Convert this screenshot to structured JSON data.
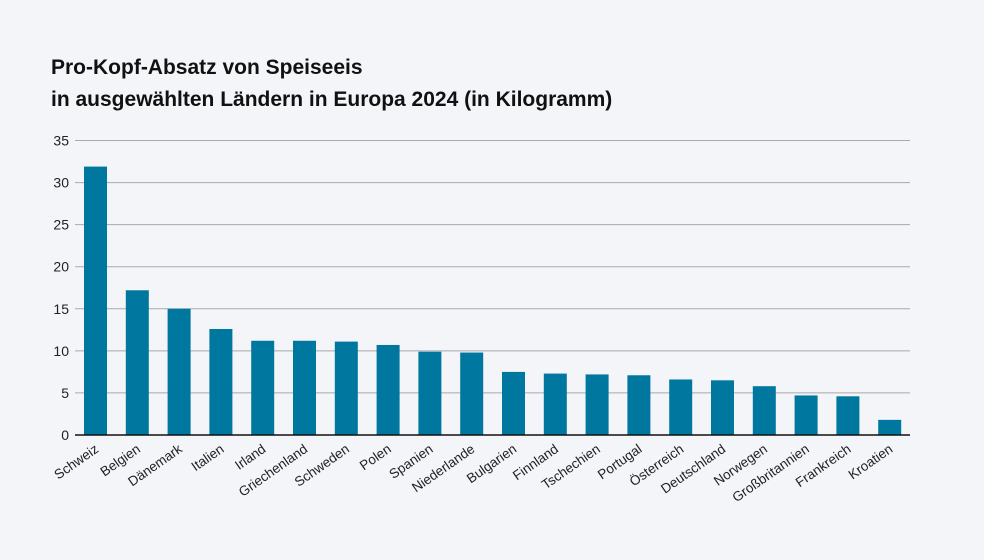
{
  "chart_data": {
    "type": "bar",
    "title": "Pro-Kopf-Absatz von Speiseeis",
    "subtitle": "in ausgewählten Ländern in Europa 2024 (in Kilogramm)",
    "xlabel": "",
    "ylabel": "",
    "ylim": [
      0,
      35
    ],
    "yticks": [
      "0",
      "5",
      "10",
      "15",
      "20",
      "25",
      "30",
      "35"
    ],
    "grid": true,
    "bar_color": "#00779e",
    "categories": [
      "Schweiz",
      "Belgien",
      "Dänemark",
      "Italien",
      "Irland",
      "Griechenland",
      "Schweden",
      "Polen",
      "Spanien",
      "Niederlande",
      "Bulgarien",
      "Finnland",
      "Tschechien",
      "Portugal",
      "Österreich",
      "Deutschland",
      "Norwegen",
      "Großbritannien",
      "Frankreich",
      "Kroatien"
    ],
    "values": [
      31.9,
      17.2,
      15.0,
      12.6,
      11.2,
      11.2,
      11.1,
      10.7,
      9.9,
      9.8,
      7.5,
      7.3,
      7.2,
      7.1,
      6.6,
      6.5,
      5.8,
      4.7,
      4.6,
      1.8
    ]
  }
}
